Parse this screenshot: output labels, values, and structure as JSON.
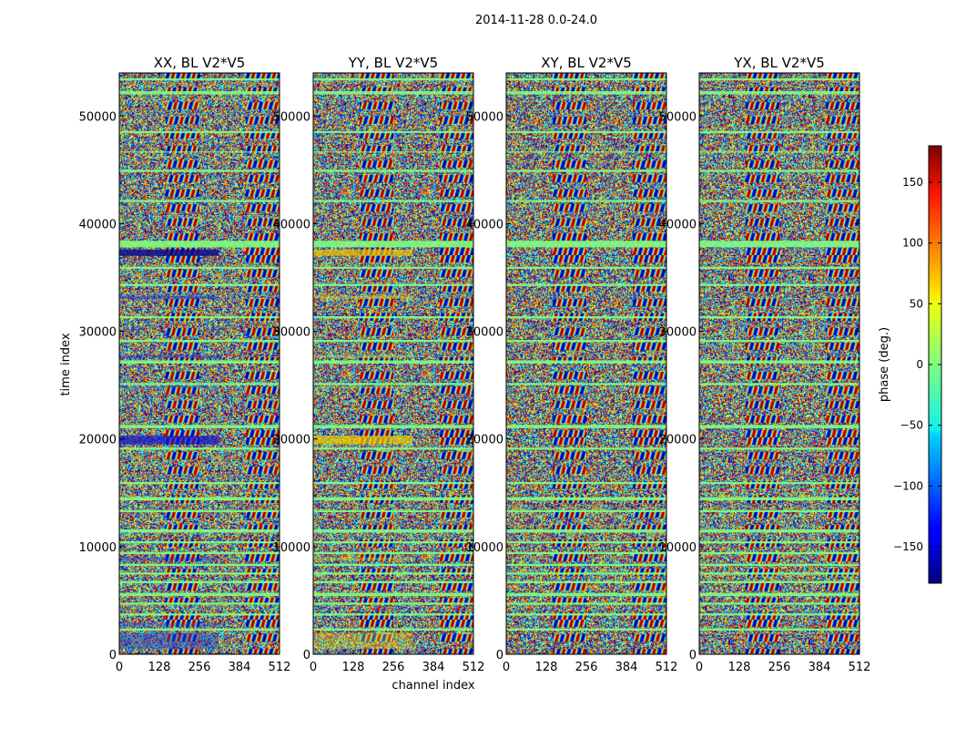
{
  "figure": {
    "suptitle": "2014-11-28 0.0-24.0"
  },
  "chart_data": {
    "type": "heatmap",
    "suptitle": "2014-11-28 0.0-24.0",
    "xlabel": "channel index",
    "ylabel": "time index",
    "xlim": [
      0,
      512
    ],
    "ylim": [
      0,
      54000
    ],
    "xticks": [
      0,
      128,
      256,
      384,
      512
    ],
    "yticks": [
      0,
      10000,
      20000,
      30000,
      40000,
      50000
    ],
    "shared_y": true,
    "panels": [
      {
        "title": "XX, BL V2*V5",
        "bands": [
          [
            37000,
            37600,
            "#0a0a8c",
            0.82
          ],
          [
            19500,
            20300,
            "#1414d0",
            0.7
          ],
          [
            33000,
            33300,
            "#1e32d8",
            0.5
          ],
          [
            27500,
            27800,
            "#1e32d8",
            0.4
          ],
          [
            24700,
            24900,
            "#3c64e6",
            0.4
          ],
          [
            8700,
            9000,
            "#1e32d8",
            0.4
          ],
          [
            2600,
            2900,
            "#2850e0",
            0.35
          ],
          [
            500,
            2000,
            "#1e3cd2",
            0.45
          ]
        ]
      },
      {
        "title": "YY, BL V2*V5",
        "bands": [
          [
            37000,
            37600,
            "#f0c800",
            0.7
          ],
          [
            19500,
            20300,
            "#f0d000",
            0.7
          ],
          [
            33000,
            33300,
            "#e6dc1e",
            0.5
          ],
          [
            27500,
            27800,
            "#b4e63c",
            0.4
          ],
          [
            24700,
            24900,
            "#c8e632",
            0.4
          ],
          [
            8700,
            9000,
            "#d2e628",
            0.4
          ],
          [
            500,
            2000,
            "#e6e61e",
            0.35
          ]
        ]
      },
      {
        "title": "XY, BL V2*V5",
        "bands": []
      },
      {
        "title": "YX, BL V2*V5",
        "bands": []
      }
    ],
    "flag_stripes": [
      [
        37800,
        38400
      ],
      [
        27000,
        27300
      ],
      [
        25000,
        25200
      ],
      [
        21000,
        21300
      ],
      [
        19000,
        19200
      ],
      [
        15800,
        16000
      ],
      [
        14300,
        14600
      ],
      [
        13200,
        13400
      ],
      [
        11300,
        11600
      ],
      [
        10300,
        10500
      ],
      [
        9300,
        9500
      ],
      [
        8200,
        8400
      ],
      [
        7400,
        7600
      ],
      [
        6600,
        6800
      ],
      [
        5400,
        5700
      ],
      [
        4600,
        4800
      ],
      [
        3600,
        3800
      ],
      [
        2200,
        2400
      ],
      [
        31200,
        31400
      ],
      [
        34200,
        34400
      ],
      [
        35800,
        36000
      ],
      [
        29000,
        29200
      ],
      [
        44800,
        45000
      ],
      [
        48400,
        48600
      ],
      [
        46600,
        46700
      ],
      [
        42000,
        42200
      ],
      [
        52000,
        52300
      ],
      [
        53300,
        53500
      ]
    ],
    "colorbar": {
      "label": "phase (deg.)",
      "range": [
        -180,
        180
      ],
      "ticks": [
        -150,
        -100,
        -50,
        0,
        50,
        100,
        150
      ],
      "tick_labels": [
        "−150",
        "−100",
        "−50",
        "0",
        "50",
        "100",
        "150"
      ],
      "colormap": "jet"
    }
  }
}
